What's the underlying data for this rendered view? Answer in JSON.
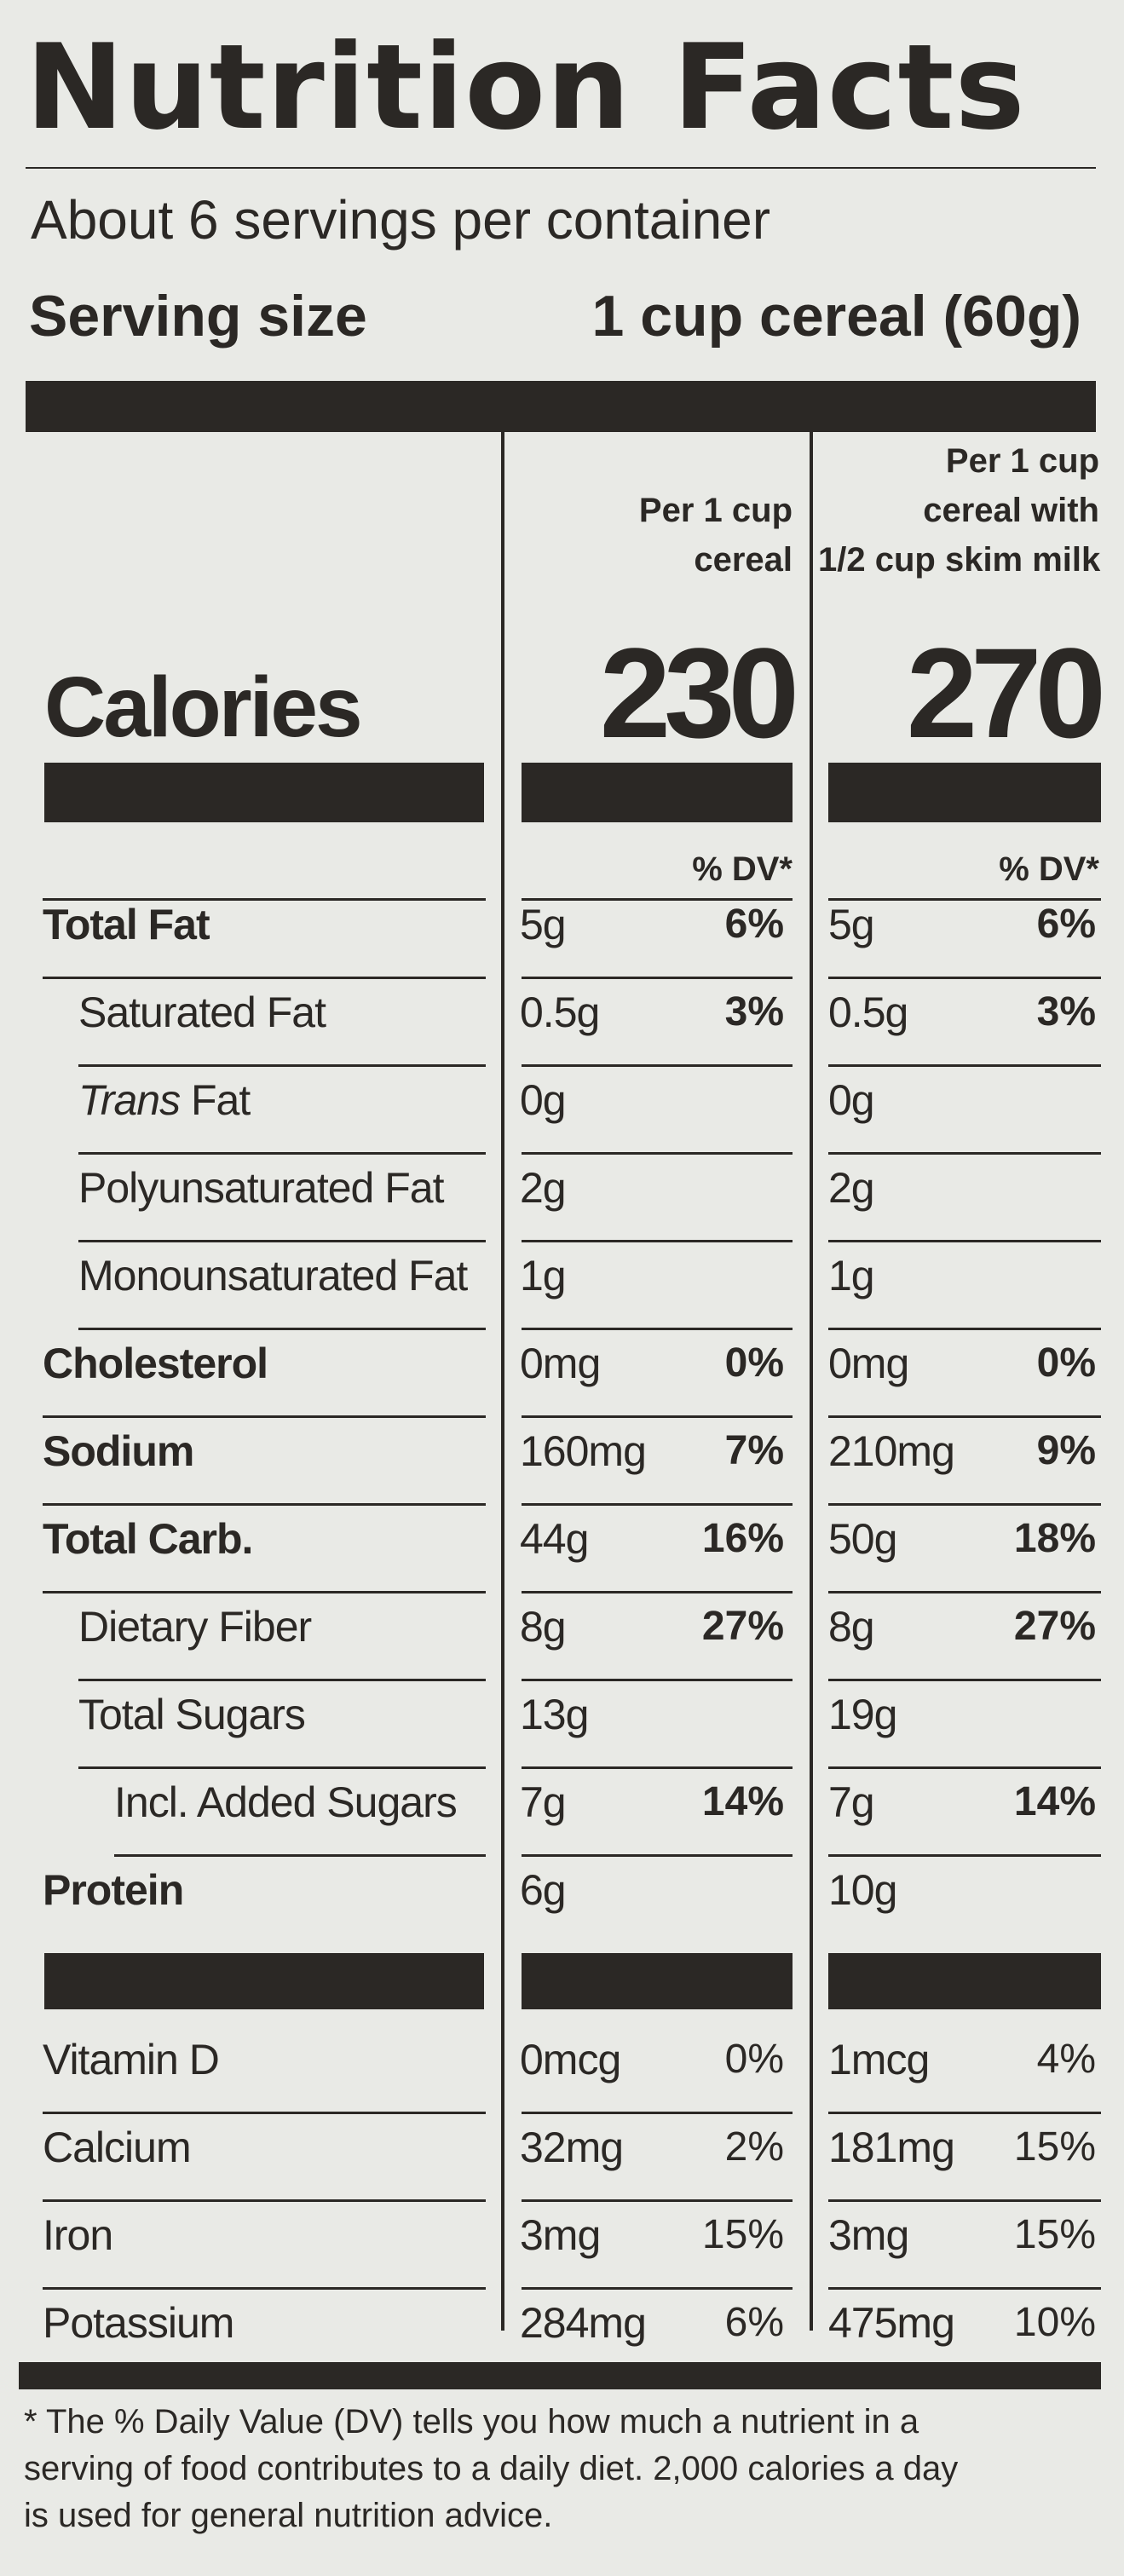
{
  "title": "Nutrition Facts",
  "servings_per_container": "About 6 servings per container",
  "serving_size_label": "Serving size",
  "serving_size_value": "1 cup cereal (60g)",
  "columns": [
    {
      "header_line1": "Per 1 cup",
      "header_line2": "cereal",
      "header_line3": ""
    },
    {
      "header_line1": "Per 1 cup",
      "header_line2": "cereal with",
      "header_line3": "1/2 cup skim milk"
    }
  ],
  "calories_label": "Calories",
  "calories": [
    "230",
    "270"
  ],
  "dv_header": "% DV*",
  "nutrients": [
    {
      "label": "Total Fat",
      "c1": "5g",
      "p1": "6%",
      "c2": "5g",
      "p2": "6%"
    },
    {
      "label": "Saturated Fat",
      "c1": "0.5g",
      "p1": "3%",
      "c2": "0.5g",
      "p2": "3%"
    },
    {
      "label_italic": "Trans",
      "label": " Fat",
      "c1": "0g",
      "p1": "",
      "c2": "0g",
      "p2": ""
    },
    {
      "label": "Polyunsaturated Fat",
      "c1": "2g",
      "p1": "",
      "c2": "2g",
      "p2": ""
    },
    {
      "label": "Monounsaturated Fat",
      "c1": "1g",
      "p1": "",
      "c2": "1g",
      "p2": ""
    },
    {
      "label": "Cholesterol",
      "c1": "0mg",
      "p1": "0%",
      "c2": "0mg",
      "p2": "0%"
    },
    {
      "label": "Sodium",
      "c1": "160mg",
      "p1": "7%",
      "c2": "210mg",
      "p2": "9%"
    },
    {
      "label": "Total Carb.",
      "c1": "44g",
      "p1": "16%",
      "c2": "50g",
      "p2": "18%"
    },
    {
      "label": "Dietary Fiber",
      "c1": "8g",
      "p1": "27%",
      "c2": "8g",
      "p2": "27%"
    },
    {
      "label": "Total Sugars",
      "c1": "13g",
      "p1": "",
      "c2": "19g",
      "p2": ""
    },
    {
      "label": "Incl. Added Sugars",
      "c1": "7g",
      "p1": "14%",
      "c2": "7g",
      "p2": "14%"
    },
    {
      "label": "Protein",
      "c1": "6g",
      "p1": "",
      "c2": "10g",
      "p2": ""
    }
  ],
  "vitamins": [
    {
      "label": "Vitamin D",
      "c1": "0mcg",
      "p1": "0%",
      "c2": "1mcg",
      "p2": "4%"
    },
    {
      "label": "Calcium",
      "c1": "32mg",
      "p1": "2%",
      "c2": "181mg",
      "p2": "15%"
    },
    {
      "label": "Iron",
      "c1": "3mg",
      "p1": "15%",
      "c2": "3mg",
      "p2": "15%"
    },
    {
      "label": "Potassium",
      "c1": "284mg",
      "p1": "6%",
      "c2": "475mg",
      "p2": "10%"
    }
  ],
  "footnote": [
    "* The % Daily Value (DV) tells you how much a nutrient in a",
    "serving of food contributes to a daily diet. 2,000 calories a day",
    "is used for general nutrition advice."
  ]
}
